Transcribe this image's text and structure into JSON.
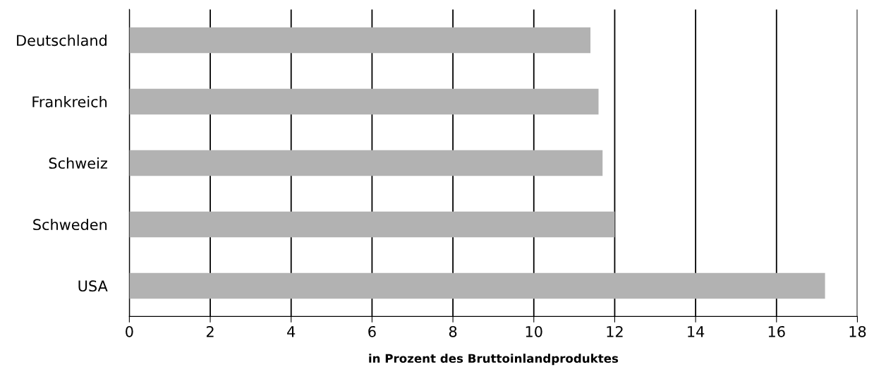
{
  "chart_data": {
    "type": "bar",
    "orientation": "horizontal",
    "xlabel": "in Prozent des Bruttoinlandproduktes",
    "categories": [
      "Deutschland",
      "Frankreich",
      "Schweiz",
      "Schweden",
      "USA"
    ],
    "values": [
      11.4,
      11.6,
      11.7,
      12.0,
      17.2
    ],
    "color": "#b2b2b2",
    "xlim": [
      0,
      18
    ],
    "xticks": [
      0,
      2,
      4,
      6,
      8,
      10,
      12,
      14,
      16,
      18
    ],
    "grid": "x",
    "legend": false
  }
}
